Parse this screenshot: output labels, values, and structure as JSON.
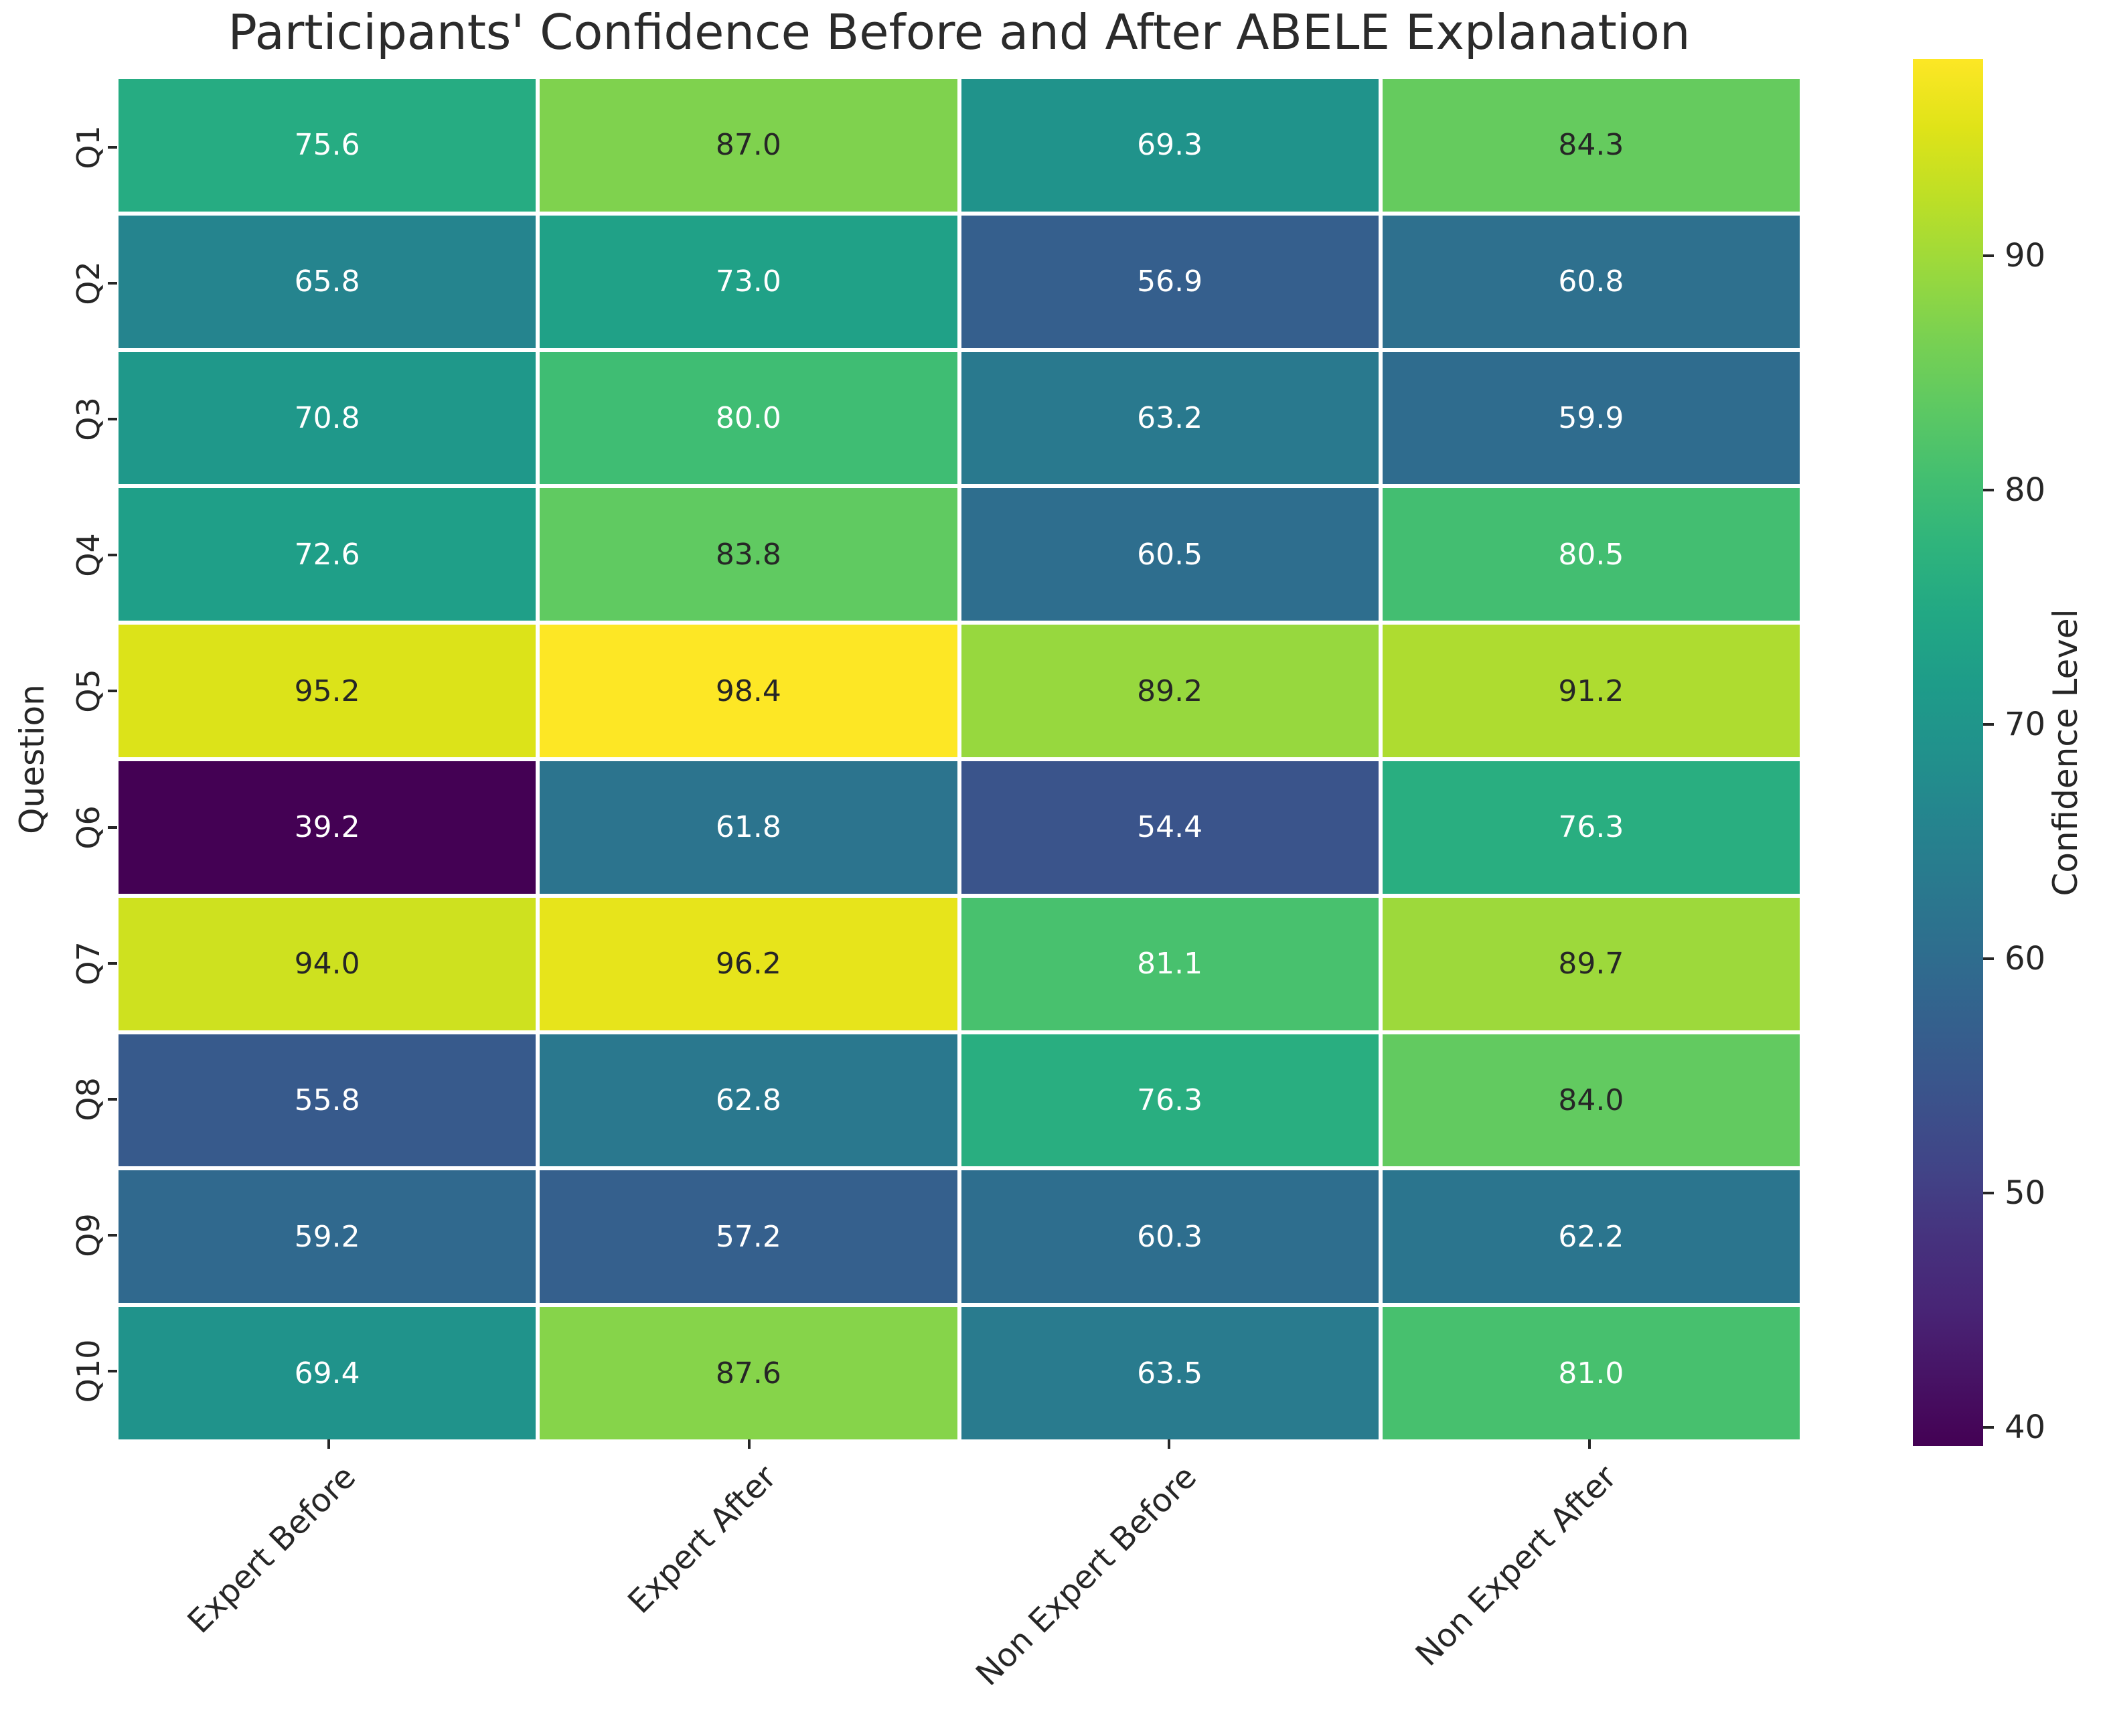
{
  "chart_data": {
    "type": "heatmap",
    "title": "Participants' Confidence Before and After ABELE Explanation",
    "xlabel": "",
    "ylabel": "Question",
    "colorbar_label": "Confidence Level",
    "colormap": "viridis",
    "vmin": 39.2,
    "vmax": 98.4,
    "colorbar_ticks": [
      90,
      80,
      70,
      60,
      50,
      40
    ],
    "grid_line_color": "#ffffff",
    "text_color": "#262626",
    "annotation_colors": {
      "dark": "#262626",
      "light": "#ffffff"
    },
    "categories": [
      "Expert Before",
      "Expert After",
      "Non Expert Before",
      "Non Expert After"
    ],
    "rows": [
      "Q1",
      "Q2",
      "Q3",
      "Q4",
      "Q5",
      "Q6",
      "Q7",
      "Q8",
      "Q9",
      "Q10"
    ],
    "values": [
      [
        75.6,
        87.0,
        69.3,
        84.3
      ],
      [
        65.8,
        73.0,
        56.9,
        60.8
      ],
      [
        70.8,
        80.0,
        63.2,
        59.9
      ],
      [
        72.6,
        83.8,
        60.5,
        80.5
      ],
      [
        95.2,
        98.4,
        89.2,
        91.2
      ],
      [
        39.2,
        61.8,
        54.4,
        76.3
      ],
      [
        94.0,
        96.2,
        81.1,
        89.7
      ],
      [
        55.8,
        62.8,
        76.3,
        84.0
      ],
      [
        59.2,
        57.2,
        60.3,
        62.2
      ],
      [
        69.4,
        87.6,
        63.5,
        81.0
      ]
    ]
  }
}
